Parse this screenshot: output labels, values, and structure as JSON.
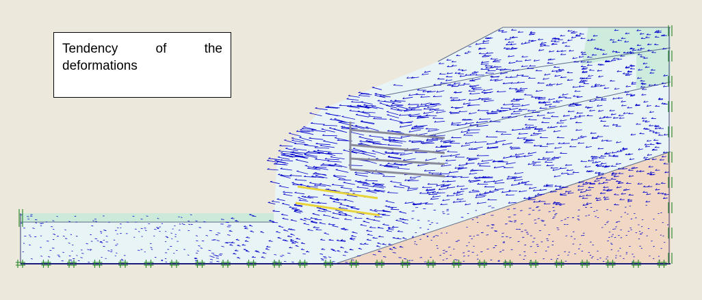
{
  "annotation": {
    "words": [
      "Tendency",
      "of",
      "the"
    ],
    "line2": "deformations"
  },
  "colors": {
    "background": "#ece9dc",
    "vector_arrows": "#0000cc",
    "soil_upper": "#e8f4f6",
    "soil_green_band": "#c8ead8",
    "soil_lower_clay": "#f0d8c4",
    "base_line": "#1a1a7a",
    "fixities": "#2e8b2e",
    "anchors": "#e8d43a",
    "wall": "#8a8a9a"
  },
  "icons": {
    "support": "hash-fixity-icon",
    "boundary": "double-bar-fixity-icon"
  }
}
